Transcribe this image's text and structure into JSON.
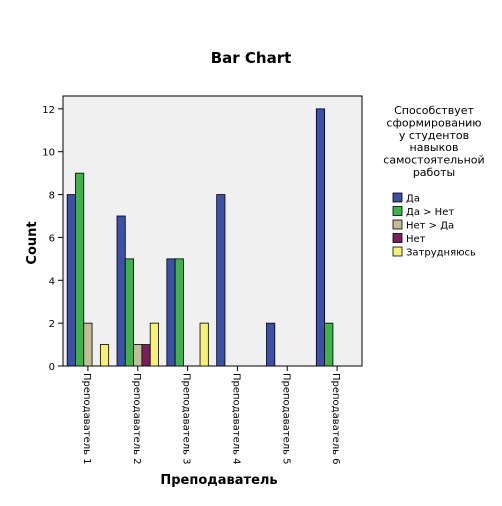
{
  "chart_data": {
    "type": "bar",
    "title": "Bar Chart",
    "xlabel": "Преподаватель",
    "ylabel": "Count",
    "ylim": [
      0,
      12.6
    ],
    "yticks": [
      0,
      2,
      4,
      6,
      8,
      10,
      12
    ],
    "categories": [
      "Преподаватель 1",
      "Преподаватель 2",
      "Преподаватель 3",
      "Преподаватель 4",
      "Преподаватель 5",
      "Преподаватель 6"
    ],
    "legend": {
      "title_lines": [
        "Способствует",
        "сформированию",
        "у студентов",
        "навыков",
        "самостоятельной",
        "работы"
      ],
      "placement": "right"
    },
    "series": [
      {
        "name": "Да",
        "color": "#3c50a8",
        "values": [
          8,
          7,
          5,
          8,
          2,
          12
        ]
      },
      {
        "name": "Да > Нет",
        "color": "#3cb44a",
        "values": [
          9,
          5,
          5,
          0,
          0,
          2
        ]
      },
      {
        "name": "Нет > Да",
        "color": "#c2bd96",
        "values": [
          2,
          1,
          0,
          0,
          0,
          0
        ]
      },
      {
        "name": "Нет",
        "color": "#7a1f5e",
        "values": [
          0,
          1,
          0,
          0,
          0,
          0
        ]
      },
      {
        "name": "Затрудняюсь",
        "color": "#f5f07a",
        "values": [
          1,
          2,
          2,
          0,
          0,
          0
        ]
      }
    ],
    "plot_background": "#f0f0f0",
    "grid": false
  }
}
